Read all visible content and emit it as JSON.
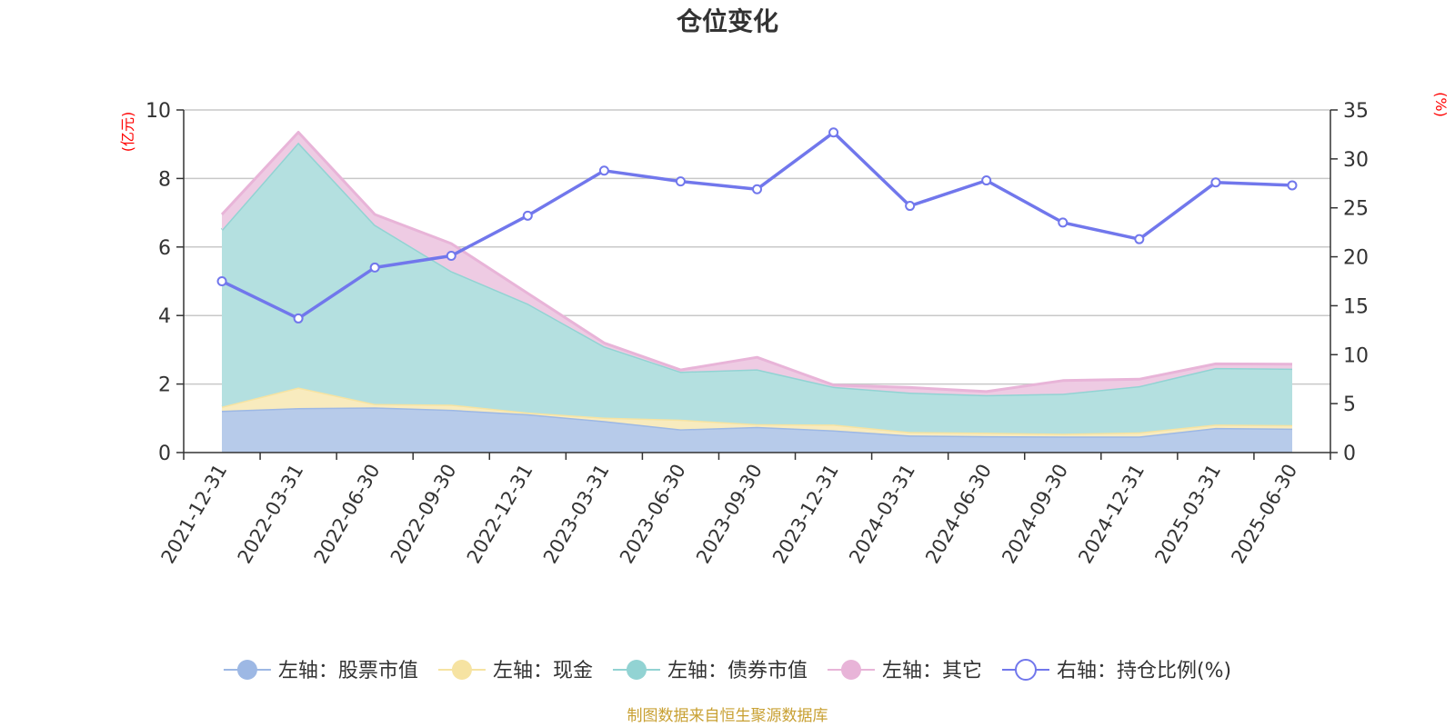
{
  "chart_data": {
    "type": "area",
    "title": "仓位变化",
    "left_unit": "(亿元)",
    "right_unit": "(%)",
    "source": "制图数据来自恒生聚源数据库",
    "categories": [
      "2021-12-31",
      "2022-03-31",
      "2022-06-30",
      "2022-09-30",
      "2022-12-31",
      "2023-03-31",
      "2023-06-30",
      "2023-09-30",
      "2023-12-31",
      "2024-03-31",
      "2024-06-30",
      "2024-09-30",
      "2024-12-31",
      "2025-03-31",
      "2025-06-30"
    ],
    "left_axis": {
      "ylim": [
        0,
        10
      ],
      "ticks": [
        "0",
        "2",
        "4",
        "6",
        "8",
        "10"
      ]
    },
    "right_axis": {
      "ylim": [
        0,
        35
      ],
      "ticks": [
        "0",
        "5",
        "10",
        "15",
        "20",
        "25",
        "30",
        "35"
      ]
    },
    "stacked_series": [
      {
        "name": "左轴：股票市值",
        "axis": "left",
        "color": "#9db8e4",
        "fill": "#b7cbea",
        "values": [
          1.22,
          1.3,
          1.32,
          1.25,
          1.12,
          0.92,
          0.68,
          0.75,
          0.65,
          0.5,
          0.48,
          0.47,
          0.47,
          0.72,
          0.7
        ]
      },
      {
        "name": "左轴：现金",
        "axis": "left",
        "color": "#f6e3a2",
        "fill": "#f8ebbe",
        "values": [
          0.12,
          0.6,
          0.1,
          0.15,
          0.05,
          0.1,
          0.28,
          0.08,
          0.17,
          0.1,
          0.1,
          0.08,
          0.12,
          0.1,
          0.1
        ]
      },
      {
        "name": "左轴：债券市值",
        "axis": "left",
        "color": "#92d3d3",
        "fill": "#b4e0e0",
        "values": [
          5.16,
          7.15,
          5.23,
          3.9,
          3.18,
          2.08,
          1.4,
          1.6,
          1.1,
          1.15,
          1.1,
          1.17,
          1.35,
          1.65,
          1.65
        ]
      },
      {
        "name": "左轴：其它",
        "axis": "left",
        "color": "#e8b4d8",
        "fill": "#eecbe3",
        "values": [
          0.45,
          0.3,
          0.3,
          0.8,
          0.3,
          0.1,
          0.05,
          0.35,
          0.05,
          0.15,
          0.1,
          0.38,
          0.2,
          0.12,
          0.13
        ]
      }
    ],
    "line_series": {
      "name": "右轴：持仓比例(%)",
      "axis": "right",
      "color": "#7177ec",
      "values": [
        17.5,
        13.7,
        18.9,
        20.1,
        24.2,
        28.8,
        27.7,
        26.9,
        32.7,
        25.2,
        27.8,
        23.5,
        21.8,
        27.6,
        27.3
      ]
    },
    "grid": true,
    "legend_position": "bottom"
  }
}
